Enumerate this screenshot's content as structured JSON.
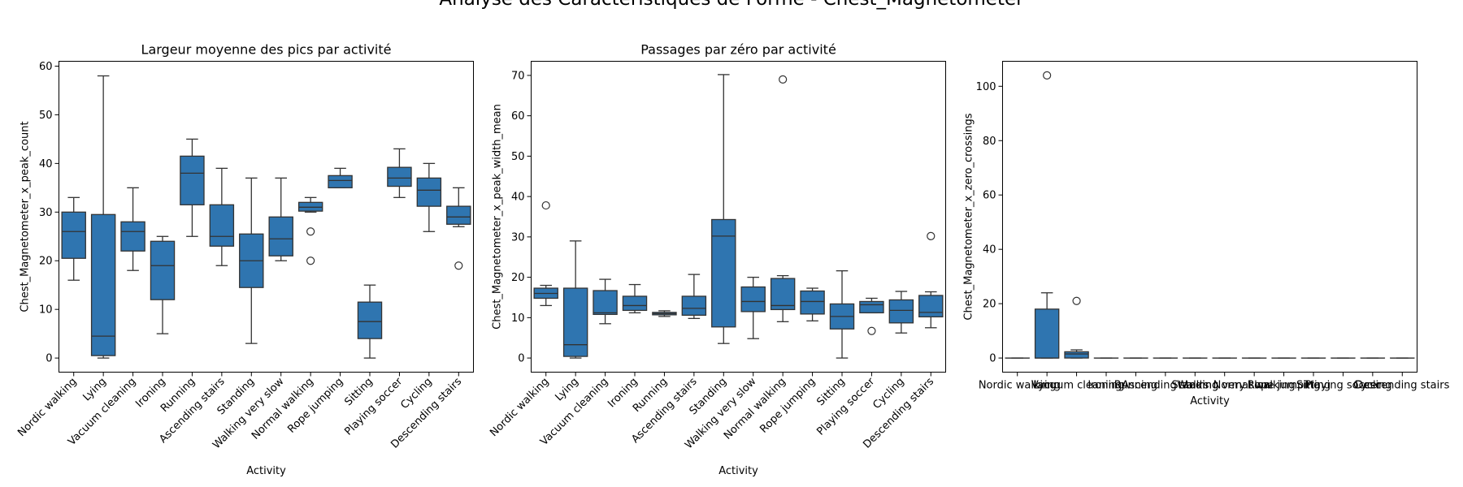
{
  "figure": {
    "suptitle": "Analyse des Caractéristiques de Forme - Chest_Magnetometer",
    "box_color": "#2f75b0",
    "edge_color": "#333333"
  },
  "chart_data": [
    {
      "type": "box",
      "title": "Largeur moyenne des pics par activité",
      "xlabel": "Activity",
      "ylabel": "Chest_Magnetometer_x_peak_count",
      "ylim": [
        -2.9,
        61
      ],
      "yticks": [
        0,
        10,
        20,
        30,
        40,
        50,
        60
      ],
      "rotate_xticks": true,
      "categories": [
        "Nordic walking",
        "Lying",
        "Vacuum cleaning",
        "Ironing",
        "Running",
        "Ascending stairs",
        "Standing",
        "Walking very slow",
        "Normal walking",
        "Rope jumping",
        "Sitting",
        "Playing soccer",
        "Cycling",
        "Descending stairs"
      ],
      "boxes": [
        {
          "wlo": 16,
          "q1": 20.5,
          "med": 26,
          "q3": 30,
          "whi": 33,
          "fliers": []
        },
        {
          "wlo": 0,
          "q1": 0.5,
          "med": 4.5,
          "q3": 29.5,
          "whi": 58,
          "fliers": []
        },
        {
          "wlo": 18,
          "q1": 22,
          "med": 26,
          "q3": 28,
          "whi": 35,
          "fliers": []
        },
        {
          "wlo": 5,
          "q1": 12,
          "med": 19,
          "q3": 24,
          "whi": 25,
          "fliers": []
        },
        {
          "wlo": 25,
          "q1": 31.5,
          "med": 38,
          "q3": 41.5,
          "whi": 45,
          "fliers": []
        },
        {
          "wlo": 19,
          "q1": 23,
          "med": 25,
          "q3": 31.5,
          "whi": 39,
          "fliers": []
        },
        {
          "wlo": 3,
          "q1": 14.5,
          "med": 20,
          "q3": 25.5,
          "whi": 37,
          "fliers": []
        },
        {
          "wlo": 20,
          "q1": 21,
          "med": 24.5,
          "q3": 29,
          "whi": 37,
          "fliers": []
        },
        {
          "wlo": 30,
          "q1": 30.2,
          "med": 31,
          "q3": 32,
          "whi": 33,
          "fliers": [
            26,
            20
          ]
        },
        {
          "wlo": 35,
          "q1": 35,
          "med": 36.5,
          "q3": 37.5,
          "whi": 39,
          "fliers": []
        },
        {
          "wlo": 0,
          "q1": 4,
          "med": 7.5,
          "q3": 11.5,
          "whi": 15,
          "fliers": []
        },
        {
          "wlo": 33,
          "q1": 35.3,
          "med": 37,
          "q3": 39.2,
          "whi": 43,
          "fliers": []
        },
        {
          "wlo": 26,
          "q1": 31.2,
          "med": 34.5,
          "q3": 37,
          "whi": 40,
          "fliers": []
        },
        {
          "wlo": 27,
          "q1": 27.5,
          "med": 29,
          "q3": 31.2,
          "whi": 35,
          "fliers": [
            19
          ]
        }
      ]
    },
    {
      "type": "box",
      "title": "Passages par zéro par activité",
      "xlabel": "Activity",
      "ylabel": "Chest_Magnetometer_x_peak_width_mean",
      "ylim": [
        -3.5,
        73.5
      ],
      "yticks": [
        0,
        10,
        20,
        30,
        40,
        50,
        60,
        70
      ],
      "rotate_xticks": true,
      "categories": [
        "Nordic walking",
        "Lying",
        "Vacuum cleaning",
        "Ironing",
        "Running",
        "Ascending stairs",
        "Standing",
        "Walking very slow",
        "Normal walking",
        "Rope jumping",
        "Sitting",
        "Playing soccer",
        "Cycling",
        "Descending stairs"
      ],
      "boxes": [
        {
          "wlo": 13,
          "q1": 14.8,
          "med": 16,
          "q3": 17.3,
          "whi": 18,
          "fliers": [
            37.8
          ]
        },
        {
          "wlo": 0,
          "q1": 0.4,
          "med": 3.3,
          "q3": 17.3,
          "whi": 29,
          "fliers": []
        },
        {
          "wlo": 8.5,
          "q1": 10.8,
          "med": 11.2,
          "q3": 16.7,
          "whi": 19.5,
          "fliers": []
        },
        {
          "wlo": 11.2,
          "q1": 11.8,
          "med": 13,
          "q3": 15.3,
          "whi": 18.2,
          "fliers": []
        },
        {
          "wlo": 10.3,
          "q1": 10.7,
          "med": 11,
          "q3": 11.3,
          "whi": 11.7,
          "fliers": []
        },
        {
          "wlo": 9.8,
          "q1": 10.6,
          "med": 12.3,
          "q3": 15.3,
          "whi": 20.7,
          "fliers": []
        },
        {
          "wlo": 3.6,
          "q1": 7.7,
          "med": 30.2,
          "q3": 34.3,
          "whi": 70.2,
          "fliers": []
        },
        {
          "wlo": 4.8,
          "q1": 11.5,
          "med": 14,
          "q3": 17.6,
          "whi": 20,
          "fliers": []
        },
        {
          "wlo": 9,
          "q1": 12,
          "med": 13,
          "q3": 19.7,
          "whi": 20.4,
          "fliers": [
            69
          ]
        },
        {
          "wlo": 9.2,
          "q1": 10.9,
          "med": 14,
          "q3": 16.6,
          "whi": 17.3,
          "fliers": []
        },
        {
          "wlo": 0,
          "q1": 7.2,
          "med": 10.3,
          "q3": 13.4,
          "whi": 21.6,
          "fliers": []
        },
        {
          "wlo": 11.2,
          "q1": 11.2,
          "med": 13.2,
          "q3": 14,
          "whi": 14.8,
          "fliers": [
            6.7
          ]
        },
        {
          "wlo": 6.2,
          "q1": 8.7,
          "med": 11.8,
          "q3": 14.4,
          "whi": 16.5,
          "fliers": []
        },
        {
          "wlo": 7.5,
          "q1": 10.2,
          "med": 11.3,
          "q3": 15.5,
          "whi": 16.4,
          "fliers": [
            30.2
          ]
        }
      ]
    },
    {
      "type": "box",
      "title": "",
      "xlabel": "Activity",
      "ylabel": "Chest_Magnetometer_x_zero_crossings",
      "ylim": [
        -5.2,
        109.2
      ],
      "yticks": [
        0,
        20,
        40,
        60,
        80,
        100
      ],
      "rotate_xticks": false,
      "categories": [
        "Nordic walking",
        "Lying",
        "Vacuum cleaning",
        "Ironing",
        "Running",
        "Ascending stairs",
        "Standing",
        "Walking very slow",
        "Normal walking",
        "Rope jumping",
        "Sitting",
        "Playing soccer",
        "Cycling",
        "Descending stairs"
      ],
      "boxes": [
        {
          "wlo": 0,
          "q1": 0,
          "med": 0,
          "q3": 0,
          "whi": 0,
          "fliers": []
        },
        {
          "wlo": 0,
          "q1": 0,
          "med": 0,
          "q3": 18,
          "whi": 24,
          "fliers": [
            104
          ]
        },
        {
          "wlo": 0,
          "q1": 0,
          "med": 1.5,
          "q3": 2.3,
          "whi": 3,
          "fliers": [
            21
          ]
        },
        {
          "wlo": 0,
          "q1": 0,
          "med": 0,
          "q3": 0,
          "whi": 0,
          "fliers": []
        },
        {
          "wlo": 0,
          "q1": 0,
          "med": 0,
          "q3": 0,
          "whi": 0,
          "fliers": []
        },
        {
          "wlo": 0,
          "q1": 0,
          "med": 0,
          "q3": 0,
          "whi": 0,
          "fliers": []
        },
        {
          "wlo": 0,
          "q1": 0,
          "med": 0,
          "q3": 0,
          "whi": 0,
          "fliers": []
        },
        {
          "wlo": 0,
          "q1": 0,
          "med": 0,
          "q3": 0,
          "whi": 0,
          "fliers": []
        },
        {
          "wlo": 0,
          "q1": 0,
          "med": 0,
          "q3": 0,
          "whi": 0,
          "fliers": []
        },
        {
          "wlo": 0,
          "q1": 0,
          "med": 0,
          "q3": 0,
          "whi": 0,
          "fliers": []
        },
        {
          "wlo": 0,
          "q1": 0,
          "med": 0,
          "q3": 0,
          "whi": 0,
          "fliers": []
        },
        {
          "wlo": 0,
          "q1": 0,
          "med": 0,
          "q3": 0,
          "whi": 0,
          "fliers": []
        },
        {
          "wlo": 0,
          "q1": 0,
          "med": 0,
          "q3": 0,
          "whi": 0,
          "fliers": []
        },
        {
          "wlo": 0,
          "q1": 0,
          "med": 0,
          "q3": 0,
          "whi": 0,
          "fliers": []
        }
      ]
    }
  ]
}
